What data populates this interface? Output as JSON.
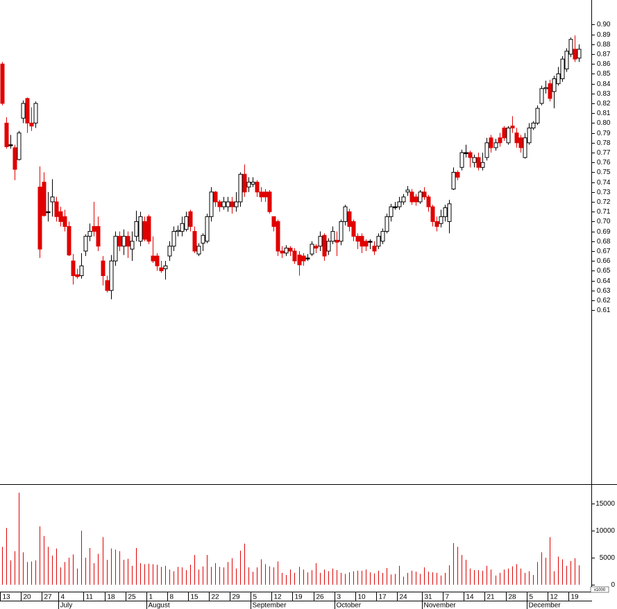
{
  "chart_data": {
    "type": "candlestick",
    "open": [
      0.86,
      0.8,
      0.778,
      0.775,
      0.763,
      0.805,
      0.825,
      0.8,
      0.8,
      0.735,
      0.74,
      0.71,
      0.72,
      0.72,
      0.71,
      0.705,
      0.695,
      0.66,
      0.646,
      0.645,
      0.67,
      0.685,
      0.695,
      0.695,
      0.66,
      0.64,
      0.63,
      0.66,
      0.685,
      0.675,
      0.685,
      0.672,
      0.685,
      0.68,
      0.7,
      0.705,
      0.665,
      0.665,
      0.653,
      0.652,
      0.665,
      0.675,
      0.69,
      0.69,
      0.692,
      0.71,
      0.69,
      0.667,
      0.678,
      0.68,
      0.705,
      0.73,
      0.72,
      0.715,
      0.715,
      0.72,
      0.715,
      0.72,
      0.748,
      0.735,
      0.738,
      0.74,
      0.73,
      0.73,
      0.73,
      0.705,
      0.7,
      0.67,
      0.668,
      0.673,
      0.67,
      0.666,
      0.665,
      0.663,
      0.667,
      0.675,
      0.675,
      0.686,
      0.67,
      0.68,
      0.681,
      0.68,
      0.7,
      0.71,
      0.7,
      0.685,
      0.685,
      0.68,
      0.68,
      0.675,
      0.675,
      0.68,
      0.69,
      0.705,
      0.715,
      0.715,
      0.72,
      0.73,
      0.73,
      0.725,
      0.72,
      0.73,
      0.725,
      0.715,
      0.7,
      0.698,
      0.705,
      0.7,
      0.733,
      0.75,
      0.755,
      0.77,
      0.77,
      0.76,
      0.765,
      0.755,
      0.765,
      0.785,
      0.775,
      0.785,
      0.795,
      0.78,
      0.797,
      0.79,
      0.785,
      0.765,
      0.78,
      0.795,
      0.8,
      0.82,
      0.835,
      0.84,
      0.832,
      0.84,
      0.845,
      0.855,
      0.87,
      0.875,
      0.866
    ],
    "high": [
      0.862,
      0.806,
      0.788,
      0.778,
      0.792,
      0.823,
      0.826,
      0.816,
      0.822,
      0.756,
      0.75,
      0.73,
      0.743,
      0.725,
      0.715,
      0.712,
      0.7,
      0.667,
      0.652,
      0.668,
      0.687,
      0.698,
      0.72,
      0.705,
      0.665,
      0.645,
      0.666,
      0.69,
      0.69,
      0.692,
      0.69,
      0.69,
      0.711,
      0.71,
      0.705,
      0.707,
      0.685,
      0.668,
      0.66,
      0.66,
      0.68,
      0.695,
      0.696,
      0.705,
      0.71,
      0.712,
      0.695,
      0.678,
      0.688,
      0.708,
      0.735,
      0.731,
      0.722,
      0.725,
      0.725,
      0.725,
      0.73,
      0.75,
      0.758,
      0.745,
      0.745,
      0.742,
      0.735,
      0.733,
      0.732,
      0.705,
      0.702,
      0.675,
      0.676,
      0.675,
      0.673,
      0.67,
      0.668,
      0.667,
      0.68,
      0.677,
      0.69,
      0.688,
      0.683,
      0.695,
      0.69,
      0.702,
      0.717,
      0.713,
      0.702,
      0.688,
      0.688,
      0.682,
      0.682,
      0.68,
      0.688,
      0.693,
      0.708,
      0.718,
      0.72,
      0.725,
      0.728,
      0.736,
      0.733,
      0.728,
      0.732,
      0.735,
      0.727,
      0.717,
      0.705,
      0.712,
      0.717,
      0.722,
      0.755,
      0.752,
      0.773,
      0.778,
      0.772,
      0.768,
      0.77,
      0.77,
      0.785,
      0.788,
      0.784,
      0.79,
      0.797,
      0.797,
      0.807,
      0.795,
      0.788,
      0.79,
      0.8,
      0.802,
      0.818,
      0.838,
      0.843,
      0.844,
      0.848,
      0.857,
      0.868,
      0.876,
      0.887,
      0.889,
      0.88
    ],
    "low": [
      0.818,
      0.774,
      0.774,
      0.742,
      0.762,
      0.8,
      0.79,
      0.792,
      0.795,
      0.663,
      0.705,
      0.7,
      0.705,
      0.7,
      0.695,
      0.69,
      0.665,
      0.636,
      0.642,
      0.642,
      0.665,
      0.68,
      0.685,
      0.67,
      0.635,
      0.628,
      0.621,
      0.655,
      0.67,
      0.666,
      0.663,
      0.66,
      0.68,
      0.675,
      0.68,
      0.677,
      0.658,
      0.65,
      0.648,
      0.641,
      0.66,
      0.67,
      0.685,
      0.685,
      0.69,
      0.69,
      0.668,
      0.665,
      0.67,
      0.678,
      0.7,
      0.715,
      0.71,
      0.712,
      0.71,
      0.708,
      0.71,
      0.715,
      0.725,
      0.73,
      0.735,
      0.725,
      0.72,
      0.72,
      0.708,
      0.69,
      0.665,
      0.663,
      0.665,
      0.665,
      0.657,
      0.645,
      0.655,
      0.66,
      0.665,
      0.668,
      0.67,
      0.66,
      0.666,
      0.677,
      0.665,
      0.676,
      0.696,
      0.69,
      0.68,
      0.672,
      0.668,
      0.67,
      0.672,
      0.666,
      0.672,
      0.677,
      0.688,
      0.7,
      0.712,
      0.712,
      0.717,
      0.726,
      0.717,
      0.716,
      0.718,
      0.722,
      0.71,
      0.695,
      0.69,
      0.694,
      0.7,
      0.688,
      0.732,
      0.742,
      0.752,
      0.765,
      0.755,
      0.755,
      0.752,
      0.752,
      0.762,
      0.77,
      0.772,
      0.776,
      0.782,
      0.778,
      0.79,
      0.775,
      0.77,
      0.764,
      0.778,
      0.793,
      0.798,
      0.818,
      0.83,
      0.822,
      0.815,
      0.838,
      0.842,
      0.852,
      0.867,
      0.862,
      0.862
    ],
    "close": [
      0.82,
      0.776,
      0.778,
      0.753,
      0.79,
      0.82,
      0.8,
      0.797,
      0.82,
      0.672,
      0.706,
      0.71,
      0.725,
      0.705,
      0.7,
      0.695,
      0.666,
      0.645,
      0.644,
      0.655,
      0.685,
      0.69,
      0.69,
      0.675,
      0.645,
      0.63,
      0.66,
      0.685,
      0.675,
      0.685,
      0.675,
      0.68,
      0.7,
      0.705,
      0.682,
      0.68,
      0.66,
      0.655,
      0.65,
      0.655,
      0.675,
      0.69,
      0.691,
      0.698,
      0.705,
      0.695,
      0.67,
      0.675,
      0.686,
      0.705,
      0.73,
      0.72,
      0.715,
      0.72,
      0.72,
      0.715,
      0.72,
      0.748,
      0.73,
      0.74,
      0.74,
      0.73,
      0.725,
      0.725,
      0.71,
      0.695,
      0.67,
      0.668,
      0.673,
      0.67,
      0.66,
      0.656,
      0.66,
      0.663,
      0.677,
      0.673,
      0.685,
      0.665,
      0.68,
      0.69,
      0.679,
      0.7,
      0.715,
      0.695,
      0.685,
      0.68,
      0.675,
      0.675,
      0.68,
      0.67,
      0.685,
      0.69,
      0.705,
      0.715,
      0.715,
      0.72,
      0.725,
      0.732,
      0.72,
      0.72,
      0.73,
      0.725,
      0.715,
      0.7,
      0.695,
      0.705,
      0.714,
      0.718,
      0.75,
      0.745,
      0.77,
      0.77,
      0.765,
      0.765,
      0.755,
      0.76,
      0.78,
      0.775,
      0.78,
      0.78,
      0.785,
      0.795,
      0.795,
      0.78,
      0.775,
      0.785,
      0.795,
      0.8,
      0.815,
      0.835,
      0.836,
      0.825,
      0.845,
      0.85,
      0.865,
      0.873,
      0.885,
      0.865,
      0.875
    ],
    "up_color": "#ffffff",
    "down_color": "#e00000",
    "doji_color": "#000000",
    "xlim": [
      -0.5,
      141
    ],
    "ylim": [
      0.434,
      0.925
    ],
    "yticks": [
      {
        "value": 0.61,
        "label": "0.61"
      },
      {
        "value": 0.62,
        "label": "0.62"
      },
      {
        "value": 0.63,
        "label": "0.63"
      },
      {
        "value": 0.64,
        "label": "0.64"
      },
      {
        "value": 0.65,
        "label": "0.65"
      },
      {
        "value": 0.66,
        "label": "0.66"
      },
      {
        "value": 0.67,
        "label": "0.67"
      },
      {
        "value": 0.68,
        "label": "0.68"
      },
      {
        "value": 0.69,
        "label": "0.69"
      },
      {
        "value": 0.7,
        "label": "0.70"
      },
      {
        "value": 0.71,
        "label": "0.71"
      },
      {
        "value": 0.72,
        "label": "0.72"
      },
      {
        "value": 0.73,
        "label": "0.73"
      },
      {
        "value": 0.74,
        "label": "0.74"
      },
      {
        "value": 0.75,
        "label": "0.75"
      },
      {
        "value": 0.76,
        "label": "0.76"
      },
      {
        "value": 0.77,
        "label": "0.77"
      },
      {
        "value": 0.78,
        "label": "0.78"
      },
      {
        "value": 0.79,
        "label": "0.79"
      },
      {
        "value": 0.8,
        "label": "0.80"
      },
      {
        "value": 0.81,
        "label": "0.81"
      },
      {
        "value": 0.82,
        "label": "0.82"
      },
      {
        "value": 0.83,
        "label": "0.83"
      },
      {
        "value": 0.84,
        "label": "0.84"
      },
      {
        "value": 0.85,
        "label": "0.85"
      },
      {
        "value": 0.86,
        "label": "0.86"
      },
      {
        "value": 0.87,
        "label": "0.87"
      },
      {
        "value": 0.88,
        "label": "0.88"
      },
      {
        "value": 0.89,
        "label": "0.89"
      },
      {
        "value": 0.9,
        "label": "0.90"
      }
    ],
    "xticks": [
      {
        "value": 0,
        "label": "13"
      },
      {
        "value": 5,
        "label": "20"
      },
      {
        "value": 10,
        "label": "27"
      },
      {
        "value": 14,
        "label": "4"
      },
      {
        "value": 20,
        "label": "11"
      },
      {
        "value": 25,
        "label": "18"
      },
      {
        "value": 30,
        "label": "25"
      },
      {
        "value": 35,
        "label": "1"
      },
      {
        "value": 40,
        "label": "8"
      },
      {
        "value": 45,
        "label": "15"
      },
      {
        "value": 50,
        "label": "22"
      },
      {
        "value": 55,
        "label": "29"
      },
      {
        "value": 60,
        "label": "5"
      },
      {
        "value": 65,
        "label": "12"
      },
      {
        "value": 70,
        "label": "19"
      },
      {
        "value": 75,
        "label": "26"
      },
      {
        "value": 80,
        "label": "3"
      },
      {
        "value": 85,
        "label": "10"
      },
      {
        "value": 90,
        "label": "17"
      },
      {
        "value": 95,
        "label": "24"
      },
      {
        "value": 101,
        "label": "31"
      },
      {
        "value": 106,
        "label": "7"
      },
      {
        "value": 111,
        "label": "14"
      },
      {
        "value": 116,
        "label": "21"
      },
      {
        "value": 121,
        "label": "28"
      },
      {
        "value": 126,
        "label": "5"
      },
      {
        "value": 131,
        "label": "12"
      },
      {
        "value": 136,
        "label": "19"
      }
    ],
    "month_ticks": [
      {
        "value": 14,
        "label": "July"
      },
      {
        "value": 35,
        "label": "August"
      },
      {
        "value": 60,
        "label": "September"
      },
      {
        "value": 80,
        "label": "October"
      },
      {
        "value": 101,
        "label": "November"
      },
      {
        "value": 126,
        "label": "December"
      }
    ],
    "volume": {
      "color": "#e00000",
      "ylim": [
        -1150,
        18460
      ],
      "yticks": [
        0,
        5000,
        10000,
        15000
      ],
      "unit_label": "x1000",
      "values": [
        7000,
        10500,
        4500,
        6200,
        17000,
        6000,
        4200,
        4300,
        4500,
        10800,
        9000,
        7000,
        5400,
        6700,
        3200,
        4200,
        5000,
        5600,
        3000,
        10000,
        5000,
        6800,
        4000,
        5700,
        8800,
        4600,
        6700,
        6500,
        6200,
        4600,
        4800,
        3500,
        6800,
        4000,
        3800,
        3900,
        3800,
        3700,
        3300,
        3500,
        2800,
        2500,
        3300,
        3200,
        2700,
        3700,
        5500,
        2800,
        3400,
        5500,
        3300,
        4000,
        3300,
        3200,
        4200,
        4900,
        3000,
        6300,
        7600,
        3200,
        2400,
        3200,
        4700,
        3800,
        3400,
        3200,
        4300,
        2200,
        1800,
        2800,
        2200,
        3300,
        2800,
        2300,
        2700,
        4000,
        2200,
        2800,
        2500,
        3000,
        2700,
        2200,
        2000,
        2300,
        2500,
        2600,
        2600,
        2800,
        2300,
        2100,
        2600,
        2200,
        3100,
        1900,
        2000,
        3500,
        1500,
        2200,
        2600,
        2400,
        2000,
        3200,
        2400,
        2300,
        2200,
        1700,
        2200,
        3600,
        7700,
        7000,
        5500,
        4600,
        3000,
        2700,
        2700,
        2600,
        3500,
        2800,
        1700,
        2200,
        2800,
        3000,
        3400,
        3800,
        3000,
        2200,
        2500,
        1800,
        4200,
        6000,
        5000,
        8800,
        2500,
        5200,
        4700,
        3500,
        4400,
        4900,
        3600
      ]
    }
  }
}
